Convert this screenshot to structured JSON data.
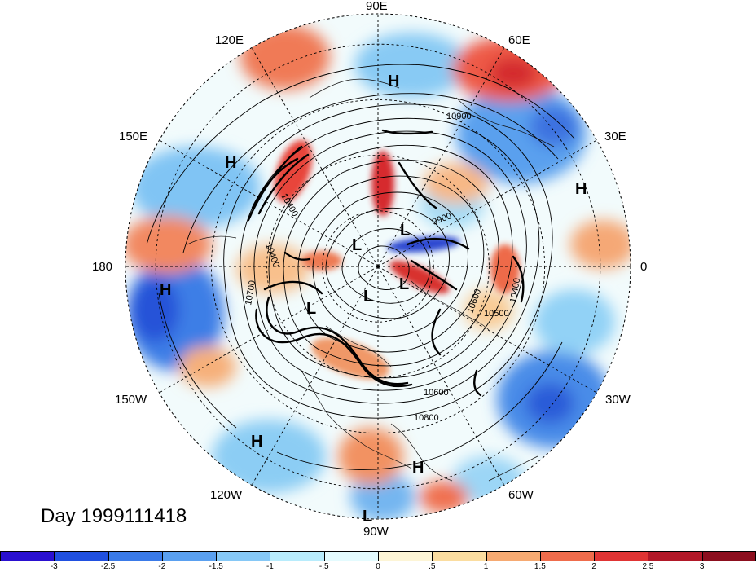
{
  "title": "Day 1999111418",
  "longitude_labels": [
    {
      "id": "90E",
      "text": "90E"
    },
    {
      "id": "120E",
      "text": "120E"
    },
    {
      "id": "60E",
      "text": "60E"
    },
    {
      "id": "150E",
      "text": "150E"
    },
    {
      "id": "30E",
      "text": "30E"
    },
    {
      "id": "180",
      "text": "180"
    },
    {
      "id": "0",
      "text": "0"
    },
    {
      "id": "150W",
      "text": "150W"
    },
    {
      "id": "30W",
      "text": "30W"
    },
    {
      "id": "120W",
      "text": "120W"
    },
    {
      "id": "60W",
      "text": "60W"
    },
    {
      "id": "90W",
      "text": "90W"
    }
  ],
  "pressure_centers": [
    {
      "type": "H",
      "text": "H"
    },
    {
      "type": "H",
      "text": "H"
    },
    {
      "type": "H",
      "text": "H"
    },
    {
      "type": "H",
      "text": "H"
    },
    {
      "type": "H",
      "text": "H"
    },
    {
      "type": "H",
      "text": "H"
    },
    {
      "type": "L",
      "text": "L"
    },
    {
      "type": "L",
      "text": "L"
    },
    {
      "type": "L",
      "text": "L"
    },
    {
      "type": "L",
      "text": "L"
    },
    {
      "type": "L",
      "text": "L"
    },
    {
      "type": "L",
      "text": "L"
    }
  ],
  "contour_labels": [
    "10900",
    "9900",
    "10400",
    "10400",
    "10700",
    "10600",
    "10500",
    "10400",
    "10600",
    "10800"
  ],
  "colorbar": {
    "labels": [
      "-3",
      "-2.5",
      "-2",
      "-1.5",
      "-1",
      "-.5",
      "0",
      ".5",
      "1",
      "1.5",
      "2",
      "2.5",
      "3"
    ],
    "colors": [
      "#2a10d0",
      "#2050e0",
      "#3a7ae8",
      "#5aa0f0",
      "#86c8f6",
      "#b8ecfc",
      "#e4fbfe",
      "#fdf5d6",
      "#fbdda0",
      "#f6aa72",
      "#ef6c4c",
      "#e03434",
      "#b21828",
      "#8c0e1e"
    ]
  }
}
